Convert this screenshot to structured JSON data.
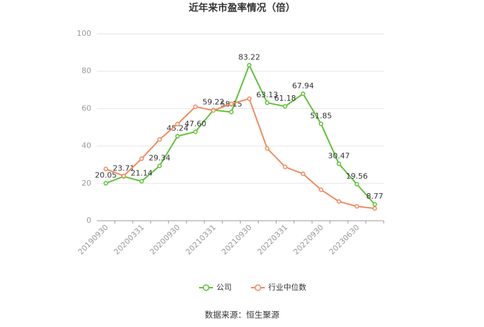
{
  "chart_data": {
    "type": "line",
    "title": "近年来市盈率情况（倍）",
    "categories": [
      "20190930",
      null,
      "20200331",
      null,
      "20200930",
      null,
      "20210331",
      null,
      "20210930",
      null,
      "20220331",
      null,
      "20220930",
      null,
      "20230630",
      null
    ],
    "series": [
      {
        "name": "公司",
        "color": "#5cc236",
        "values": [
          20.05,
          23.71,
          21.14,
          29.34,
          45.24,
          47.6,
          59.22,
          58.15,
          83.22,
          63.13,
          61.18,
          67.94,
          51.85,
          30.47,
          19.56,
          8.77
        ],
        "value_labels": [
          "20.05",
          "23.71",
          "21.14",
          "29.34",
          "45.24",
          "47.60",
          "59.22",
          "58.15",
          "83.22",
          "63.13",
          "61.18",
          "67.94",
          "51.85",
          "30.47",
          "19.56",
          "8.77"
        ]
      },
      {
        "name": "行业中位数",
        "color": "#f08a5d",
        "values": [
          27.7,
          24,
          33.2,
          43.5,
          51.7,
          61,
          59,
          62.5,
          65.3,
          38.7,
          28.8,
          25.1,
          16.6,
          10.3,
          7.7,
          6.6
        ]
      }
    ],
    "ylim": [
      0,
      100
    ],
    "yticks": [
      0,
      20,
      40,
      60,
      80,
      100
    ],
    "grid": true,
    "legend": "bottom",
    "source": "数据来源：恒生聚源"
  }
}
